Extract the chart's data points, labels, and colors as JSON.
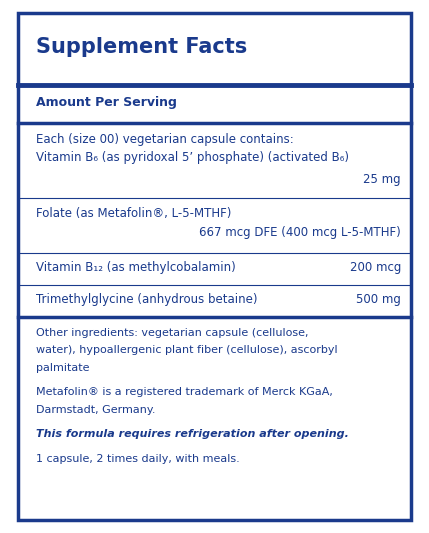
{
  "title": "Supplement Facts",
  "border_color": "#1a3a8c",
  "text_color": "#1a3a8c",
  "bg_color": "#ffffff",
  "title_fontsize": 15,
  "body_fontsize": 8.5,
  "small_fontsize": 8.0,
  "amount_per_serving": "Amount Per Serving",
  "intro_line": "Each (size 00) vegetarian capsule contains:",
  "vb6_line1": "Vitamin B₆ (as pyridoxal 5’ phosphate) (activated B₆)",
  "vb6_amount": "25 mg",
  "folate_line1": "Folate (as Metafolin®, L-5-MTHF)",
  "folate_line2": "667 mcg DFE (400 mcg L-5-MTHF)",
  "vb12_name": "Vitamin B₁₂ (as methylcobalamin)",
  "vb12_amount": "200 mcg",
  "tmg_name": "Trimethylglycine (anhydrous betaine)",
  "tmg_amount": "500 mg",
  "other_line1": "Other ingredients: vegetarian capsule (cellulose,",
  "other_line2": "water), hypoallergenic plant fiber (cellulose), ascorbyl",
  "other_line3": "palmitate",
  "trademark_line1": "Metafolin® is a registered trademark of Merck KGaA,",
  "trademark_line2": "Darmstadt, Germany.",
  "bold_italic_line": "This formula requires refrigeration after opening.",
  "dosage_line": "1 capsule, 2 times daily, with meals.",
  "thick_lw": 2.5,
  "thin_lw": 0.8,
  "outer_lw": 2.5
}
